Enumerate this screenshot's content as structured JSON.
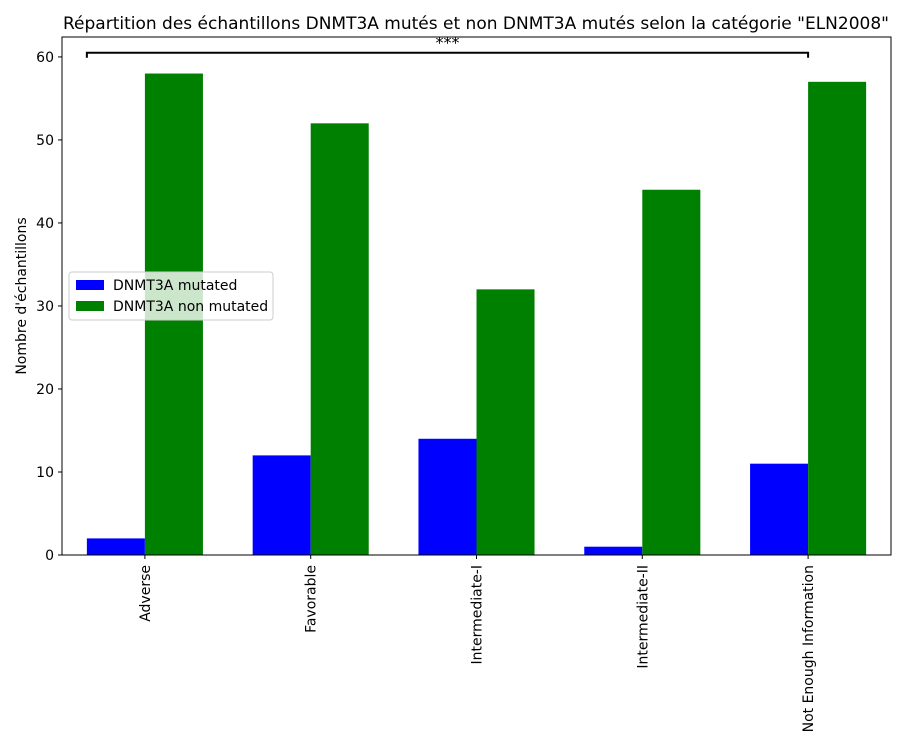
{
  "chart_data": {
    "type": "bar",
    "title": "Répartition des échantillons DNMT3A mutés et non DNMT3A mutés selon la catégorie \"ELN2008\"",
    "xlabel": "",
    "ylabel": "Nombre d'échantillons",
    "categories": [
      "Adverse",
      "Favorable",
      "Intermediate-I",
      "Intermediate-II",
      "Not Enough Information"
    ],
    "series": [
      {
        "name": "DNMT3A mutated",
        "values": [
          2,
          12,
          14,
          1,
          11
        ],
        "color": "#0000ff"
      },
      {
        "name": "DNMT3A non mutated",
        "values": [
          58,
          52,
          32,
          44,
          57
        ],
        "color": "#008000"
      }
    ],
    "ylim": [
      0,
      62.4
    ],
    "yticks": [
      0,
      10,
      20,
      30,
      40,
      50,
      60
    ],
    "x_tick_rotation": "vertical",
    "legend_position": "center-left",
    "grid": false,
    "annotation": {
      "text": "***",
      "from_category": "Adverse",
      "to_category": "Not Enough Information",
      "y": 60.5
    }
  }
}
